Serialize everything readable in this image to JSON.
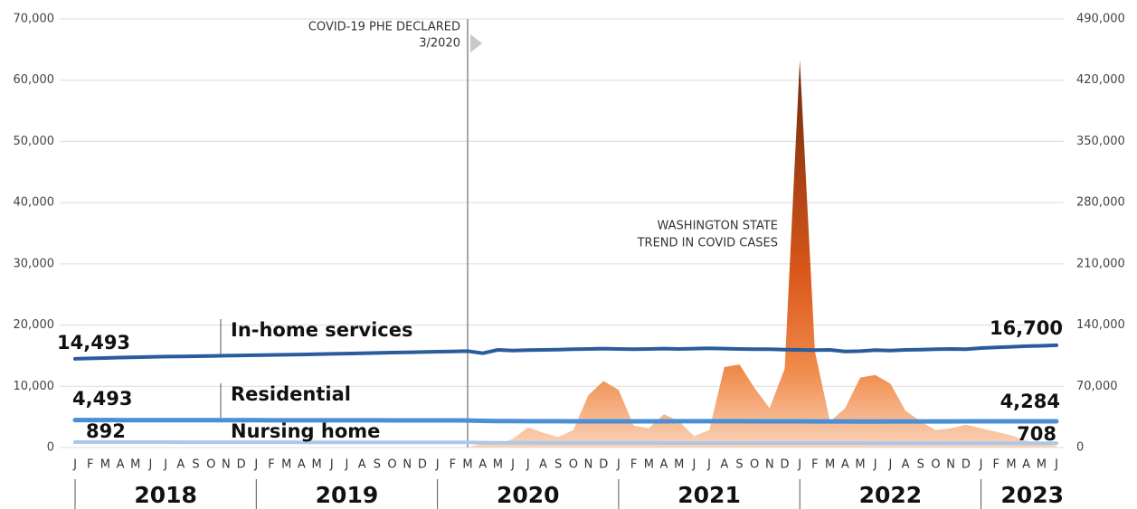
{
  "chart_data": {
    "type": "line",
    "categories": [
      "J",
      "F",
      "M",
      "A",
      "M",
      "J",
      "J",
      "A",
      "S",
      "O",
      "N",
      "D",
      "J",
      "F",
      "M",
      "A",
      "M",
      "J",
      "J",
      "A",
      "S",
      "O",
      "N",
      "D",
      "J",
      "F",
      "M",
      "A",
      "M",
      "J",
      "J",
      "A",
      "S",
      "O",
      "N",
      "D",
      "J",
      "F",
      "M",
      "A",
      "M",
      "J",
      "J",
      "A",
      "S",
      "O",
      "N",
      "D",
      "J",
      "F",
      "M",
      "A",
      "M",
      "J",
      "J",
      "A",
      "S",
      "O",
      "N",
      "D",
      "J",
      "F",
      "M",
      "A",
      "M",
      "J"
    ],
    "years": [
      "2018",
      "2019",
      "2020",
      "2021",
      "2022",
      "2023"
    ],
    "annotations": [
      {
        "lines": [
          "COVID-19 PHE DECLARED",
          "3/2020"
        ],
        "index": 26
      },
      {
        "lines": [
          "WASHINGTON STATE",
          "TREND IN COVID CASES"
        ]
      }
    ],
    "ylim": [
      0,
      70000
    ],
    "yticks": [
      0,
      {
        "value": 10000,
        "label": "10,000"
      },
      {
        "value": 20000,
        "label": "20,000"
      },
      {
        "value": 30000,
        "label": "30,000"
      },
      {
        "value": 40000,
        "label": "40,000"
      },
      {
        "value": 50000,
        "label": "50,000"
      },
      {
        "value": 60000,
        "label": "60,000"
      },
      {
        "value": 70000,
        "label": "70,000"
      }
    ],
    "y2lim": [
      0,
      490000
    ],
    "y2ticks": [
      0,
      {
        "value": 70000,
        "label": "70,000"
      },
      {
        "value": 140000,
        "label": "140,000"
      },
      {
        "value": 210000,
        "label": "210,000"
      },
      {
        "value": 280000,
        "label": "280,000"
      },
      {
        "value": 350000,
        "label": "350,000"
      },
      {
        "value": 420000,
        "label": "420,000"
      },
      {
        "value": 490000,
        "label": "490,000"
      }
    ],
    "grid": true,
    "series": [
      {
        "name": "In-home services",
        "color": "#2a5b9c",
        "width": 4,
        "values": [
          14493,
          14560,
          14620,
          14700,
          14760,
          14800,
          14850,
          14880,
          14920,
          14960,
          15000,
          15050,
          15080,
          15120,
          15150,
          15200,
          15250,
          15300,
          15350,
          15400,
          15450,
          15500,
          15550,
          15600,
          15650,
          15700,
          15750,
          15400,
          15950,
          15850,
          15900,
          15950,
          16000,
          16050,
          16100,
          16150,
          16100,
          16050,
          16100,
          16150,
          16100,
          16150,
          16200,
          16150,
          16100,
          16050,
          16050,
          16000,
          15950,
          15900,
          15950,
          15700,
          15750,
          15900,
          15850,
          15950,
          16000,
          16050,
          16100,
          16050,
          16250,
          16350,
          16450,
          16550,
          16620,
          16700
        ],
        "value_labels": [
          "14,493",
          null,
          null,
          null,
          null,
          null,
          null,
          null,
          null,
          null,
          null,
          null,
          null,
          null,
          null,
          null,
          null,
          null,
          null,
          null,
          null,
          null,
          null,
          null,
          null,
          null,
          null,
          null,
          null,
          null,
          null,
          null,
          null,
          null,
          null,
          null,
          null,
          null,
          null,
          null,
          null,
          null,
          null,
          null,
          null,
          null,
          null,
          null,
          null,
          null,
          null,
          null,
          null,
          null,
          null,
          null,
          null,
          null,
          null,
          null,
          null,
          null,
          null,
          null,
          null,
          "16,700"
        ]
      },
      {
        "name": "Residential",
        "color": "#4a8fd6",
        "width": 5,
        "values": [
          4493,
          4490,
          4485,
          4480,
          4478,
          4475,
          4470,
          4468,
          4465,
          4462,
          4460,
          4458,
          4455,
          4452,
          4450,
          4448,
          4446,
          4445,
          4443,
          4440,
          4438,
          4436,
          4434,
          4432,
          4430,
          4425,
          4420,
          4350,
          4320,
          4310,
          4300,
          4300,
          4295,
          4290,
          4290,
          4290,
          4285,
          4285,
          4290,
          4290,
          4295,
          4300,
          4300,
          4300,
          4295,
          4290,
          4290,
          4285,
          4280,
          4275,
          4270,
          4265,
          4260,
          4260,
          4262,
          4265,
          4268,
          4270,
          4275,
          4278,
          4280,
          4282,
          4283,
          4284,
          4284,
          4284
        ],
        "value_labels": [
          "4,493",
          null,
          null,
          null,
          null,
          null,
          null,
          null,
          null,
          null,
          null,
          null,
          null,
          null,
          null,
          null,
          null,
          null,
          null,
          null,
          null,
          null,
          null,
          null,
          null,
          null,
          null,
          null,
          null,
          null,
          null,
          null,
          null,
          null,
          null,
          null,
          null,
          null,
          null,
          null,
          null,
          null,
          null,
          null,
          null,
          null,
          null,
          null,
          null,
          null,
          null,
          null,
          null,
          null,
          null,
          null,
          null,
          null,
          null,
          null,
          null,
          null,
          null,
          null,
          null,
          "4,284"
        ]
      },
      {
        "name": "Nursing home",
        "color": "#a9c8ea",
        "width": 4,
        "values": [
          892,
          890,
          888,
          886,
          884,
          882,
          880,
          878,
          876,
          874,
          872,
          870,
          868,
          866,
          864,
          862,
          860,
          858,
          856,
          854,
          852,
          850,
          848,
          846,
          844,
          842,
          840,
          800,
          780,
          770,
          765,
          760,
          758,
          756,
          754,
          752,
          750,
          748,
          746,
          745,
          744,
          743,
          742,
          741,
          740,
          739,
          738,
          737,
          736,
          735,
          734,
          733,
          732,
          731,
          730,
          729,
          728,
          727,
          726,
          725,
          722,
          719,
          716,
          713,
          710,
          708
        ],
        "value_labels": [
          892,
          null,
          null,
          null,
          null,
          null,
          null,
          null,
          null,
          null,
          null,
          null,
          null,
          null,
          null,
          null,
          null,
          null,
          null,
          null,
          null,
          null,
          null,
          null,
          null,
          null,
          null,
          null,
          null,
          null,
          null,
          null,
          null,
          null,
          null,
          null,
          null,
          null,
          null,
          null,
          null,
          null,
          null,
          null,
          null,
          null,
          null,
          null,
          null,
          null,
          null,
          null,
          null,
          null,
          null,
          null,
          null,
          null,
          null,
          null,
          null,
          null,
          null,
          null,
          null,
          708
        ]
      },
      {
        "type": "area",
        "axis": "y2",
        "color": "#e86a1f",
        "values": [
          null,
          null,
          null,
          null,
          null,
          null,
          null,
          null,
          null,
          null,
          null,
          null,
          null,
          null,
          null,
          null,
          null,
          null,
          null,
          null,
          null,
          null,
          null,
          null,
          null,
          null,
          0,
          5000,
          3000,
          10000,
          23000,
          17000,
          12000,
          20000,
          60000,
          76000,
          66000,
          25000,
          22000,
          38000,
          30000,
          13000,
          20000,
          92000,
          95000,
          68000,
          45000,
          90000,
          443000,
          110000,
          30000,
          45000,
          80000,
          83000,
          73000,
          42000,
          30000,
          20000,
          22000,
          26000,
          22000,
          18000,
          14000,
          8000,
          4000,
          2000
        ]
      }
    ]
  }
}
